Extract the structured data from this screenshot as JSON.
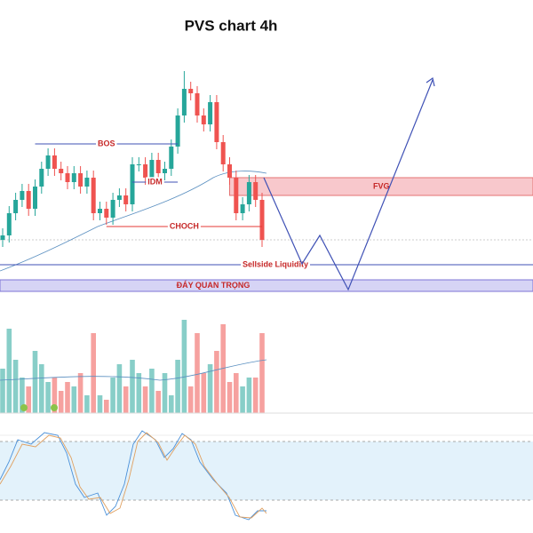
{
  "chart_data": {
    "type": "candlestick",
    "title": "PVS chart 4h",
    "ylim": [
      0,
      300
    ],
    "colors": {
      "up": "#26a69a",
      "down": "#ef5350"
    },
    "series": [
      {
        "open": [
          70,
          75,
          100,
          115,
          125,
          105,
          130,
          150,
          165,
          150,
          145,
          135,
          145,
          130,
          140,
          100,
          105,
          95,
          115,
          120,
          110,
          155,
          155,
          140,
          160,
          145,
          150,
          175,
          210,
          240,
          235,
          210,
          200,
          225,
          180,
          155,
          140,
          100,
          110,
          135,
          115
        ],
        "high": [
          83,
          108,
          123,
          133,
          133,
          138,
          158,
          173,
          173,
          158,
          153,
          153,
          153,
          148,
          148,
          113,
          113,
          123,
          128,
          128,
          163,
          163,
          163,
          168,
          168,
          158,
          183,
          218,
          260,
          248,
          243,
          218,
          233,
          233,
          188,
          163,
          148,
          118,
          143,
          143,
          123
        ],
        "low": [
          62,
          67,
          92,
          107,
          97,
          97,
          122,
          142,
          142,
          137,
          127,
          127,
          122,
          122,
          92,
          92,
          87,
          87,
          107,
          102,
          102,
          147,
          132,
          132,
          137,
          137,
          142,
          167,
          202,
          227,
          202,
          192,
          192,
          172,
          147,
          132,
          92,
          92,
          102,
          107,
          62
        ],
        "close": [
          75,
          100,
          115,
          125,
          105,
          130,
          150,
          165,
          150,
          145,
          135,
          145,
          130,
          140,
          100,
          105,
          95,
          115,
          120,
          110,
          155,
          155,
          140,
          160,
          145,
          150,
          175,
          210,
          240,
          235,
          210,
          200,
          225,
          180,
          155,
          140,
          100,
          110,
          135,
          115,
          70
        ]
      }
    ],
    "volume": {
      "ylim": [
        0,
        120
      ],
      "values": [
        50,
        95,
        60,
        40,
        30,
        70,
        55,
        35,
        40,
        25,
        35,
        30,
        45,
        20,
        90,
        20,
        15,
        40,
        55,
        30,
        60,
        45,
        30,
        50,
        25,
        45,
        20,
        60,
        105,
        30,
        90,
        45,
        55,
        70,
        100,
        35,
        45,
        30,
        40,
        40,
        90
      ]
    },
    "annotations": [
      {
        "text": "BOS",
        "level": 178,
        "from": 5,
        "to": 27,
        "color": "#3f51b5"
      },
      {
        "text": "IDM",
        "level": 135,
        "from": 20,
        "to": 27,
        "color": "#3f51b5"
      },
      {
        "text": "CHOCH",
        "level": 85,
        "from": 16,
        "to": 40,
        "color": "#e53935"
      },
      {
        "text": "Sellside Liquidity",
        "level": 42,
        "color": "#3f51b5"
      }
    ],
    "zones": [
      {
        "text": "FVG",
        "top": 140,
        "bottom": 120,
        "from": 35,
        "color": "#f8c8cc",
        "edge": "#e57373"
      },
      {
        "text": "ĐÁY QUAN TRỌNG",
        "top": 25,
        "bottom": 12,
        "color": "#d6d4f5",
        "edge": "#7e75d6"
      }
    ]
  }
}
